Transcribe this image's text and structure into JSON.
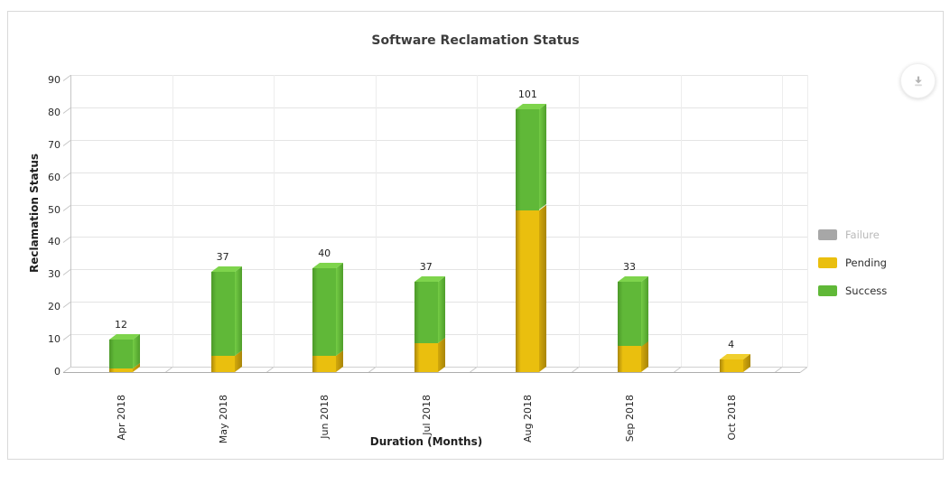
{
  "chart_data": {
    "type": "bar",
    "stacked": true,
    "projection": "3d",
    "title": "Software Reclamation Status",
    "xlabel": "Duration (Months)",
    "ylabel": "Reclamation Status",
    "categories": [
      "Apr 2018",
      "May 2018",
      "Jun 2018",
      "Jul 2018",
      "Aug 2018",
      "Sep 2018",
      "Oct 2018"
    ],
    "total_labels": [
      "12",
      "37",
      "40",
      "37",
      "101",
      "33",
      "4"
    ],
    "series": [
      {
        "name": "Failure",
        "visible": false,
        "color": "#a7a7a7"
      },
      {
        "name": "Pending",
        "visible": true,
        "color": "#eabf0e",
        "side_colors": [
          "#d2a80b",
          "#a8850a"
        ],
        "top_color": "#f0cf2e",
        "shade_color": "#ab870a",
        "values": [
          1,
          5,
          5,
          9,
          50,
          8,
          4
        ]
      },
      {
        "name": "Success",
        "visible": true,
        "color": "#60b838",
        "side_colors": [
          "#74cc45",
          "#4f9e2b"
        ],
        "top_color": "#7ed44c",
        "shade_color": "#4c9929",
        "values": [
          9,
          26,
          27,
          19,
          31,
          20,
          0
        ]
      }
    ],
    "yticks": [
      0,
      10,
      20,
      30,
      40,
      50,
      60,
      70,
      80,
      90
    ],
    "ylim": [
      0,
      90
    ],
    "grid": true,
    "legend_position": "right"
  },
  "toolbar": {
    "download_icon_name": "download-arrow",
    "icon_color": "#b3b3b3"
  },
  "frame": {
    "card_border_color": "#d9d9d9",
    "grid_color": "#e4e4e4",
    "axis_line_color": "#c6c6c6",
    "floor_front_color": "#adadad",
    "floor_back_color": "#d0d0d0",
    "label_color": "#1f1f1f"
  }
}
